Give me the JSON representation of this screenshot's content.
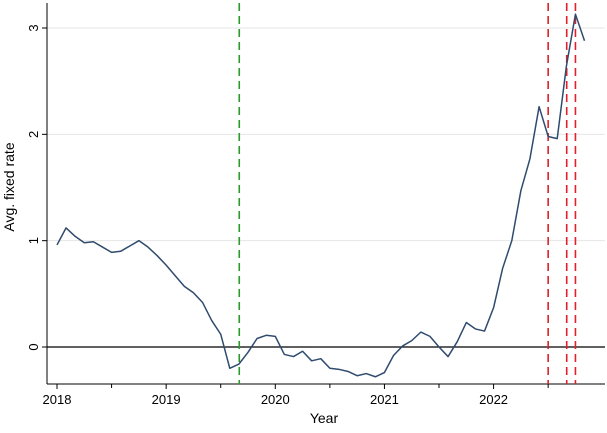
{
  "chart_data": {
    "type": "line",
    "title": "",
    "xlabel": "Year",
    "ylabel": "Avg. fixed rate",
    "xlim": [
      2018.0,
      2022.92
    ],
    "ylim": [
      -0.35,
      3.25
    ],
    "grid": true,
    "x_ticks": [
      {
        "value": 2018,
        "label": "2018"
      },
      {
        "value": 2019,
        "label": "2019"
      },
      {
        "value": 2020,
        "label": "2020"
      },
      {
        "value": 2021,
        "label": "2021"
      },
      {
        "value": 2022,
        "label": "2022"
      }
    ],
    "y_ticks": [
      {
        "value": 0,
        "label": "0"
      },
      {
        "value": 1,
        "label": "1"
      },
      {
        "value": 2,
        "label": "2"
      },
      {
        "value": 3,
        "label": "3"
      }
    ],
    "zero_line": 0,
    "series": [
      {
        "color": "#2f4b6e",
        "x": [
          2018.0,
          2018.083,
          2018.167,
          2018.25,
          2018.333,
          2018.417,
          2018.5,
          2018.583,
          2018.667,
          2018.75,
          2018.833,
          2018.917,
          2019.0,
          2019.083,
          2019.167,
          2019.25,
          2019.333,
          2019.417,
          2019.5,
          2019.583,
          2019.667,
          2019.75,
          2019.833,
          2019.917,
          2020.0,
          2020.083,
          2020.167,
          2020.25,
          2020.333,
          2020.417,
          2020.5,
          2020.583,
          2020.667,
          2020.75,
          2020.833,
          2020.917,
          2021.0,
          2021.083,
          2021.167,
          2021.25,
          2021.333,
          2021.417,
          2021.5,
          2021.583,
          2021.667,
          2021.75,
          2021.833,
          2021.917,
          2022.0,
          2022.083,
          2022.167,
          2022.25,
          2022.333,
          2022.417,
          2022.5,
          2022.583,
          2022.667,
          2022.75,
          2022.833
        ],
        "y": [
          0.96,
          1.12,
          1.04,
          0.98,
          0.99,
          0.94,
          0.89,
          0.9,
          0.95,
          1.0,
          0.94,
          0.86,
          0.77,
          0.67,
          0.57,
          0.51,
          0.42,
          0.25,
          0.12,
          -0.2,
          -0.16,
          -0.05,
          0.08,
          0.11,
          0.1,
          -0.07,
          -0.09,
          -0.04,
          -0.13,
          -0.11,
          -0.2,
          -0.21,
          -0.23,
          -0.27,
          -0.25,
          -0.28,
          -0.24,
          -0.08,
          0.01,
          0.06,
          0.14,
          0.1,
          0.0,
          -0.09,
          0.05,
          0.23,
          0.17,
          0.15,
          0.37,
          0.74,
          1.0,
          1.47,
          1.77,
          2.26,
          1.98,
          1.96,
          2.64,
          3.13,
          2.88
        ]
      }
    ],
    "reference_lines": [
      {
        "x": 2019.67,
        "color": "#2a9a2a",
        "style": "dashed"
      },
      {
        "x": 2022.5,
        "color": "#e0202a",
        "style": "dashed"
      },
      {
        "x": 2022.67,
        "color": "#e0202a",
        "style": "dashed"
      },
      {
        "x": 2022.75,
        "color": "#e0202a",
        "style": "dashed"
      }
    ]
  }
}
